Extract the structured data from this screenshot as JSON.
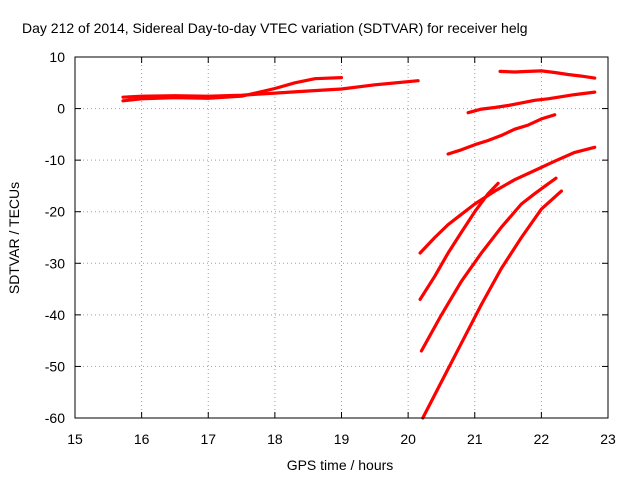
{
  "chart_data": {
    "type": "line",
    "title": "Day 212 of 2014, Sidereal Day-to-day VTEC variation (SDTVAR) for receiver helg",
    "xlabel": "GPS time / hours",
    "ylabel": "SDTVAR / TECUs",
    "xlim": [
      15,
      23
    ],
    "ylim": [
      -60,
      10
    ],
    "xticks": [
      "15",
      "16",
      "17",
      "18",
      "19",
      "20",
      "21",
      "22",
      "23"
    ],
    "yticks": [
      "10",
      "0",
      "-10",
      "-20",
      "-30",
      "-40",
      "-50",
      "-60"
    ],
    "grid": true,
    "legend": "none",
    "color": "#ff0000",
    "series": [
      {
        "x": [
          15.72,
          16.0,
          16.5,
          17.0,
          17.5,
          18.0,
          18.3,
          18.6,
          19.0
        ],
        "values": [
          1.5,
          1.9,
          2.1,
          2.0,
          2.4,
          3.9,
          5.0,
          5.8,
          6.0
        ]
      },
      {
        "x": [
          15.72,
          16.0,
          16.5,
          17.0,
          17.5,
          18.0,
          18.5,
          19.0,
          19.5,
          20.15
        ],
        "values": [
          2.2,
          2.4,
          2.5,
          2.4,
          2.6,
          3.0,
          3.4,
          3.8,
          4.6,
          5.4
        ]
      },
      {
        "x": [
          21.38,
          21.6,
          21.8,
          22.0,
          22.2,
          22.4,
          22.6,
          22.8
        ],
        "values": [
          7.2,
          7.1,
          7.2,
          7.3,
          7.0,
          6.6,
          6.3,
          5.9
        ]
      },
      {
        "x": [
          20.9,
          21.1,
          21.3,
          21.5,
          21.7,
          21.9,
          22.1,
          22.3,
          22.5,
          22.8
        ],
        "values": [
          -0.8,
          -0.1,
          0.2,
          0.6,
          1.1,
          1.6,
          1.9,
          2.3,
          2.7,
          3.2
        ]
      },
      {
        "x": [
          20.6,
          20.8,
          21.0,
          21.2,
          21.4,
          21.6,
          21.8,
          22.0,
          22.2
        ],
        "values": [
          -8.8,
          -8.0,
          -7.0,
          -6.2,
          -5.2,
          -4.0,
          -3.2,
          -2.0,
          -1.2
        ]
      },
      {
        "x": [
          20.18,
          20.4,
          20.6,
          20.8,
          21.0,
          21.3,
          21.6,
          21.9,
          22.2,
          22.5,
          22.8
        ],
        "values": [
          -28.0,
          -25.0,
          -22.5,
          -20.5,
          -18.5,
          -16.0,
          -13.8,
          -12.0,
          -10.2,
          -8.5,
          -7.5
        ]
      },
      {
        "x": [
          20.18,
          20.4,
          20.6,
          20.8,
          21.0,
          21.2,
          21.35
        ],
        "values": [
          -37.0,
          -32.5,
          -28.0,
          -24.0,
          -20.0,
          -16.5,
          -14.5
        ]
      },
      {
        "x": [
          20.2,
          20.5,
          20.8,
          21.1,
          21.4,
          21.7,
          21.9,
          22.1,
          22.22
        ],
        "values": [
          -47.0,
          -40.0,
          -33.5,
          -28.0,
          -23.0,
          -18.5,
          -16.5,
          -14.6,
          -13.5
        ]
      },
      {
        "x": [
          20.22,
          20.5,
          20.8,
          21.1,
          21.4,
          21.7,
          22.0,
          22.3
        ],
        "values": [
          -60.0,
          -53.0,
          -45.5,
          -38.0,
          -31.0,
          -25.0,
          -19.5,
          -16.0
        ]
      }
    ]
  }
}
